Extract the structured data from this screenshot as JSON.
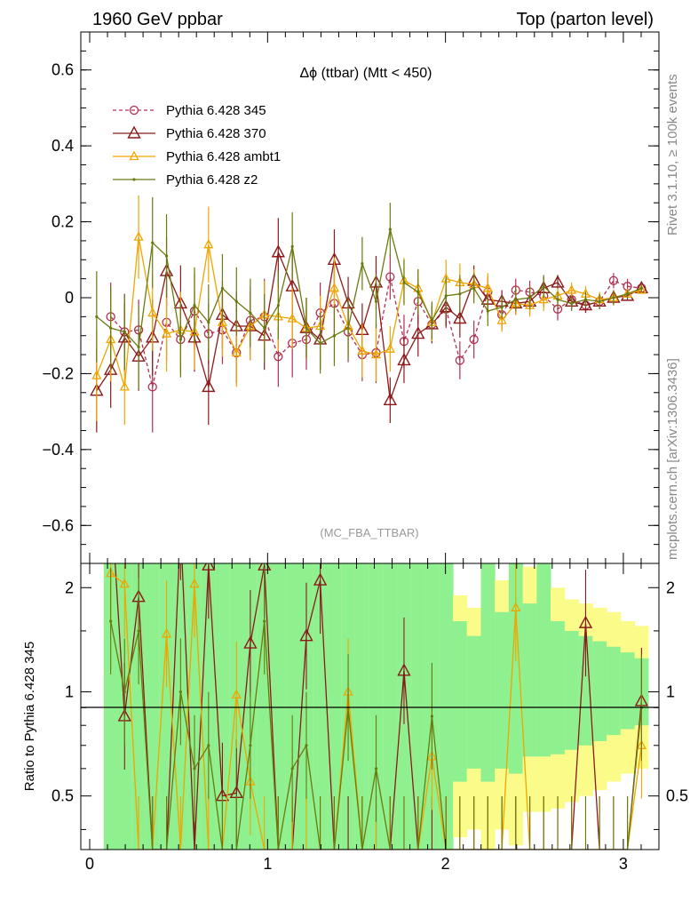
{
  "header": {
    "left": "1960 GeV ppbar",
    "right": "Top (parton level)"
  },
  "side": {
    "rivet": "Rivet 3.1.10, ≥ 100k events",
    "mcplots": "mcplots.cern.ch [arXiv:1306.3436]"
  },
  "chart_data": [
    {
      "type": "line",
      "title": "Δϕ (ttbar) (Mtt < 450)",
      "watermark": "(MC_FBA_TTBAR)",
      "xlabel": "",
      "ylabel": "",
      "xlim": [
        -0.05,
        3.2
      ],
      "ylim": [
        -0.7,
        0.7
      ],
      "yticks": [
        "0.6",
        "0.4",
        "0.2",
        "0",
        "−0.2",
        "−0.4",
        "−0.6"
      ],
      "ytick_values": [
        0.6,
        0.4,
        0.2,
        0,
        -0.2,
        -0.4,
        -0.6
      ],
      "legend_position": "top-left",
      "series": [
        {
          "name": "Pythia 6.428 345",
          "color": "#b03050",
          "dash": "4,3",
          "marker": "circle",
          "x": [
            0.118,
            0.196,
            0.275,
            0.353,
            0.432,
            0.511,
            0.589,
            0.668,
            0.746,
            0.825,
            0.903,
            0.982,
            1.06,
            1.139,
            1.218,
            1.296,
            1.375,
            1.453,
            1.532,
            1.61,
            1.689,
            1.767,
            1.846,
            1.924,
            2.003,
            2.081,
            2.16,
            2.238,
            2.317,
            2.395,
            2.474,
            2.552,
            2.631,
            2.709,
            2.788,
            2.866,
            2.945,
            3.023,
            3.102
          ],
          "y": [
            -0.05,
            -0.09,
            -0.085,
            -0.235,
            -0.065,
            -0.11,
            -0.035,
            -0.095,
            -0.085,
            -0.145,
            -0.06,
            -0.05,
            -0.155,
            -0.12,
            -0.11,
            -0.04,
            -0.015,
            -0.09,
            -0.15,
            -0.145,
            0.055,
            -0.115,
            -0.01,
            -0.07,
            -0.03,
            -0.165,
            -0.11,
            0.015,
            -0.045,
            0.02,
            0.015,
            0.005,
            -0.03,
            -0.005,
            -0.02,
            -0.01,
            0.045,
            0.03,
            0.025
          ],
          "err": [
            0.09,
            0.1,
            0.08,
            0.12,
            0.1,
            0.09,
            0.1,
            0.08,
            0.09,
            0.08,
            0.09,
            0.1,
            0.08,
            0.09,
            0.08,
            0.08,
            0.09,
            0.08,
            0.07,
            0.08,
            0.06,
            0.07,
            0.06,
            0.05,
            0.05,
            0.05,
            0.05,
            0.04,
            0.04,
            0.03,
            0.03,
            0.03,
            0.03,
            0.02,
            0.02,
            0.02,
            0.02,
            0.02,
            0.01
          ]
        },
        {
          "name": "Pythia 6.428 370",
          "color": "#8b1a1a",
          "dash": "",
          "marker": "triangle",
          "x": [
            0.039,
            0.118,
            0.196,
            0.275,
            0.353,
            0.432,
            0.511,
            0.589,
            0.668,
            0.746,
            0.825,
            0.903,
            0.982,
            1.06,
            1.139,
            1.218,
            1.296,
            1.375,
            1.453,
            1.532,
            1.61,
            1.689,
            1.767,
            1.846,
            1.924,
            2.003,
            2.081,
            2.16,
            2.238,
            2.317,
            2.395,
            2.474,
            2.552,
            2.631,
            2.709,
            2.788,
            2.866,
            2.945,
            3.023,
            3.102
          ],
          "y": [
            -0.245,
            -0.19,
            -0.105,
            -0.155,
            -0.105,
            0.07,
            -0.015,
            -0.105,
            -0.235,
            -0.045,
            -0.075,
            -0.075,
            -0.1,
            0.12,
            0.03,
            -0.08,
            -0.11,
            0.1,
            -0.015,
            -0.085,
            0.04,
            -0.27,
            -0.165,
            -0.095,
            -0.07,
            -0.025,
            -0.055,
            0.045,
            -0.005,
            -0.01,
            -0.015,
            -0.01,
            0.025,
            0.04,
            -0.01,
            -0.02,
            -0.01,
            0.0,
            0.005,
            0.025
          ],
          "err": [
            0.11,
            0.1,
            0.09,
            0.09,
            0.1,
            0.09,
            0.1,
            0.09,
            0.1,
            0.09,
            0.09,
            0.09,
            0.09,
            0.09,
            0.09,
            0.08,
            0.08,
            0.08,
            0.07,
            0.07,
            0.07,
            0.06,
            0.06,
            0.06,
            0.05,
            0.05,
            0.05,
            0.04,
            0.04,
            0.03,
            0.03,
            0.03,
            0.03,
            0.02,
            0.02,
            0.02,
            0.02,
            0.02,
            0.01,
            0.01
          ]
        },
        {
          "name": "Pythia 6.428 ambt1",
          "color": "#f0a500",
          "dash": "",
          "marker": "triangle-small",
          "x": [
            0.039,
            0.118,
            0.196,
            0.275,
            0.353,
            0.432,
            0.511,
            0.589,
            0.668,
            0.746,
            0.825,
            0.903,
            0.982,
            1.06,
            1.139,
            1.218,
            1.296,
            1.375,
            1.453,
            1.532,
            1.61,
            1.689,
            1.767,
            1.846,
            1.924,
            2.003,
            2.081,
            2.16,
            2.238,
            2.317,
            2.395,
            2.474,
            2.552,
            2.631,
            2.709,
            2.788,
            2.866,
            2.945,
            3.023,
            3.102
          ],
          "y": [
            -0.205,
            -0.11,
            -0.235,
            0.16,
            -0.04,
            -0.095,
            -0.085,
            -0.09,
            0.14,
            -0.065,
            -0.145,
            -0.075,
            -0.045,
            -0.05,
            -0.055,
            -0.08,
            -0.075,
            0.025,
            -0.075,
            -0.14,
            -0.15,
            -0.135,
            0.045,
            0.025,
            -0.065,
            0.05,
            0.04,
            0.035,
            0.025,
            -0.06,
            -0.015,
            -0.02,
            -0.005,
            0.005,
            0.02,
            0.01,
            -0.005,
            0.0,
            0.01,
            0.02
          ],
          "err": [
            0.12,
            0.11,
            0.1,
            0.11,
            0.1,
            0.1,
            0.1,
            0.1,
            0.1,
            0.09,
            0.09,
            0.09,
            0.09,
            0.09,
            0.08,
            0.08,
            0.08,
            0.08,
            0.07,
            0.07,
            0.07,
            0.06,
            0.06,
            0.05,
            0.05,
            0.05,
            0.05,
            0.04,
            0.04,
            0.03,
            0.03,
            0.03,
            0.03,
            0.02,
            0.02,
            0.02,
            0.02,
            0.02,
            0.01,
            0.01
          ]
        },
        {
          "name": "Pythia 6.428 z2",
          "color": "#6b7a10",
          "dash": "",
          "marker": "dot",
          "x": [
            0.039,
            0.118,
            0.196,
            0.275,
            0.353,
            0.432,
            0.511,
            0.589,
            0.668,
            0.746,
            0.825,
            0.903,
            0.982,
            1.06,
            1.139,
            1.218,
            1.296,
            1.375,
            1.453,
            1.532,
            1.61,
            1.689,
            1.767,
            1.846,
            1.924,
            2.003,
            2.081,
            2.16,
            2.238,
            2.317,
            2.395,
            2.474,
            2.552,
            2.631,
            2.709,
            2.788,
            2.866,
            2.945,
            3.023,
            3.102
          ],
          "y": [
            -0.05,
            -0.08,
            -0.09,
            -0.13,
            0.145,
            0.11,
            -0.11,
            -0.02,
            -0.065,
            0.025,
            -0.01,
            -0.04,
            -0.08,
            -0.02,
            0.135,
            -0.08,
            -0.12,
            -0.1,
            -0.08,
            0.09,
            -0.01,
            0.18,
            0.04,
            0.015,
            -0.06,
            0.005,
            0.01,
            0.025,
            -0.035,
            -0.025,
            -0.005,
            0.0,
            0.03,
            -0.005,
            -0.015,
            -0.005,
            -0.01,
            0.0,
            0.01,
            0.025
          ],
          "err": [
            0.12,
            0.11,
            0.1,
            0.11,
            0.12,
            0.11,
            0.1,
            0.1,
            0.1,
            0.09,
            0.09,
            0.09,
            0.09,
            0.09,
            0.09,
            0.08,
            0.08,
            0.08,
            0.08,
            0.07,
            0.07,
            0.07,
            0.06,
            0.06,
            0.05,
            0.05,
            0.05,
            0.04,
            0.04,
            0.03,
            0.03,
            0.03,
            0.03,
            0.02,
            0.02,
            0.02,
            0.02,
            0.02,
            0.01,
            0.01
          ]
        }
      ]
    },
    {
      "type": "line",
      "title": "",
      "ylabel": "Ratio to Pythia 6.428 345",
      "xlabel": "",
      "xlim": [
        -0.05,
        3.2
      ],
      "ylim": [
        0.35,
        2.35
      ],
      "yticks": [
        "2",
        "1",
        "0.5"
      ],
      "ytick_values": [
        2,
        1,
        0.5
      ],
      "xticks": [
        "0",
        "1",
        "2",
        "3"
      ],
      "xtick_values": [
        0,
        1,
        2,
        3
      ],
      "reference_line": 1,
      "bands": [
        {
          "name": "1 sigma",
          "color": "#8ef08e"
        },
        {
          "name": "2 sigma",
          "color": "#fbfb8a"
        }
      ],
      "band_x_edges": [
        0.079,
        0.157,
        0.236,
        0.314,
        0.393,
        0.471,
        0.55,
        0.628,
        0.707,
        0.785,
        0.864,
        0.942,
        1.021,
        1.1,
        1.178,
        1.257,
        1.335,
        1.414,
        1.492,
        1.571,
        1.649,
        1.728,
        1.806,
        1.885,
        1.963,
        2.042,
        2.12,
        2.199,
        2.277,
        2.356,
        2.434,
        2.513,
        2.591,
        2.67,
        2.749,
        2.827,
        2.906,
        2.984,
        3.063,
        3.14
      ],
      "band_1sigma_low": [
        0.35,
        0.35,
        0.35,
        0.35,
        0.35,
        0.35,
        0.35,
        0.35,
        0.35,
        0.35,
        0.35,
        0.35,
        0.35,
        0.35,
        0.35,
        0.35,
        0.35,
        0.35,
        0.35,
        0.35,
        0.35,
        0.35,
        0.35,
        0.35,
        0.35,
        0.55,
        0.6,
        0.55,
        0.6,
        0.58,
        0.65,
        0.65,
        0.66,
        0.68,
        0.7,
        0.72,
        0.75,
        0.78,
        0.8
      ],
      "band_1sigma_high": [
        2.35,
        2.35,
        2.35,
        2.35,
        2.35,
        2.35,
        2.35,
        2.35,
        2.35,
        2.35,
        2.35,
        2.35,
        2.35,
        2.35,
        2.35,
        2.35,
        2.35,
        2.35,
        2.35,
        2.35,
        2.35,
        2.35,
        2.35,
        2.35,
        2.35,
        1.6,
        1.45,
        2.35,
        1.7,
        2.35,
        1.8,
        2.35,
        1.6,
        1.5,
        1.45,
        1.4,
        1.35,
        1.3,
        1.25
      ],
      "band_2sigma_low": [
        0.35,
        0.35,
        0.35,
        0.35,
        0.35,
        0.35,
        0.35,
        0.35,
        0.35,
        0.35,
        0.35,
        0.35,
        0.35,
        0.35,
        0.35,
        0.35,
        0.35,
        0.35,
        0.35,
        0.35,
        0.35,
        0.35,
        0.35,
        0.35,
        0.35,
        0.38,
        0.4,
        0.35,
        0.4,
        0.36,
        0.45,
        0.45,
        0.46,
        0.48,
        0.5,
        0.52,
        0.55,
        0.58,
        0.6
      ],
      "band_2sigma_high": [
        2.35,
        2.35,
        2.35,
        2.35,
        2.35,
        2.35,
        2.35,
        2.35,
        2.35,
        2.35,
        2.35,
        2.35,
        2.35,
        2.35,
        2.35,
        2.35,
        2.35,
        2.35,
        2.35,
        2.35,
        2.35,
        2.35,
        2.35,
        2.35,
        2.35,
        1.9,
        1.75,
        2.35,
        2.1,
        2.35,
        2.3,
        2.35,
        2.0,
        1.85,
        1.8,
        1.75,
        1.7,
        1.6,
        1.55
      ],
      "series": [
        {
          "name": "Pythia 6.428 370",
          "color": "#8b1a1a",
          "marker": "triangle",
          "x": [
            0.118,
            0.196,
            0.275,
            0.353,
            0.432,
            0.511,
            0.589,
            0.668,
            0.746,
            0.825,
            0.903,
            0.982,
            1.06,
            1.139,
            1.218,
            1.296,
            1.375,
            1.453,
            1.532,
            1.61,
            1.689,
            1.767,
            1.846,
            1.924,
            2.003,
            2.081,
            2.16,
            2.238,
            2.317,
            2.395,
            2.474,
            2.552,
            2.631,
            2.709,
            2.788,
            2.866,
            2.945,
            3.023,
            3.102
          ],
          "y": [
            3.8,
            0.85,
            1.88,
            0.35,
            0.35,
            3.0,
            0.35,
            2.32,
            0.5,
            0.51,
            1.38,
            2.32,
            0.35,
            0.35,
            1.45,
            2.1,
            0.35,
            0.35,
            0.35,
            0.35,
            0.35,
            1.15,
            0.35,
            0.35,
            0.35,
            0.35,
            0.35,
            0.35,
            0.35,
            0.35,
            0.35,
            0.35,
            0.35,
            0.35,
            1.58,
            0.35,
            0.35,
            0.35,
            0.94
          ]
        },
        {
          "name": "Pythia 6.428 ambt1",
          "color": "#f0a500",
          "marker": "triangle-small",
          "x": [
            0.118,
            0.196,
            0.275,
            0.353,
            0.432,
            0.511,
            0.589,
            0.668,
            0.746,
            0.825,
            0.903,
            0.982,
            1.06,
            1.139,
            1.218,
            1.296,
            1.375,
            1.453,
            1.532,
            1.61,
            1.689,
            1.767,
            1.846,
            1.924,
            2.003,
            2.081,
            2.16,
            2.238,
            2.317,
            2.395,
            2.474,
            2.552,
            2.631,
            2.709,
            2.788,
            2.866,
            2.945,
            3.023,
            3.102
          ],
          "y": [
            2.2,
            2.05,
            0.35,
            0.35,
            1.47,
            0.35,
            2.05,
            0.35,
            0.35,
            0.98,
            0.55,
            0.35,
            0.35,
            0.35,
            0.35,
            0.35,
            0.35,
            1.0,
            0.35,
            0.35,
            0.35,
            0.35,
            0.35,
            0.65,
            0.35,
            0.35,
            0.35,
            0.35,
            0.35,
            1.75,
            0.35,
            0.35,
            0.35,
            0.35,
            0.35,
            0.35,
            0.35,
            0.35,
            0.7
          ]
        },
        {
          "name": "Pythia 6.428 z2",
          "color": "#6b7a10",
          "marker": "dot",
          "x": [
            0.118,
            0.196,
            0.275,
            0.353,
            0.432,
            0.511,
            0.589,
            0.668,
            0.746,
            0.825,
            0.903,
            0.982,
            1.06,
            1.139,
            1.218,
            1.296,
            1.375,
            1.453,
            1.532,
            1.61,
            1.689,
            1.767,
            1.846,
            1.924,
            2.003,
            2.081,
            2.16,
            2.238,
            2.317,
            2.395,
            2.474,
            2.552,
            2.631,
            2.709,
            2.788,
            2.866,
            2.945,
            3.023,
            3.102
          ],
          "y": [
            1.6,
            1.0,
            1.5,
            0.35,
            0.35,
            1.0,
            0.6,
            0.7,
            0.35,
            0.35,
            0.7,
            1.6,
            0.35,
            0.6,
            0.7,
            0.35,
            0.35,
            0.9,
            0.35,
            0.6,
            0.35,
            0.35,
            0.35,
            0.85,
            0.35,
            0.35,
            0.35,
            0.35,
            0.35,
            0.35,
            0.35,
            0.35,
            0.35,
            0.35,
            0.35,
            0.35,
            0.35,
            0.35,
            0.9
          ]
        }
      ]
    }
  ]
}
